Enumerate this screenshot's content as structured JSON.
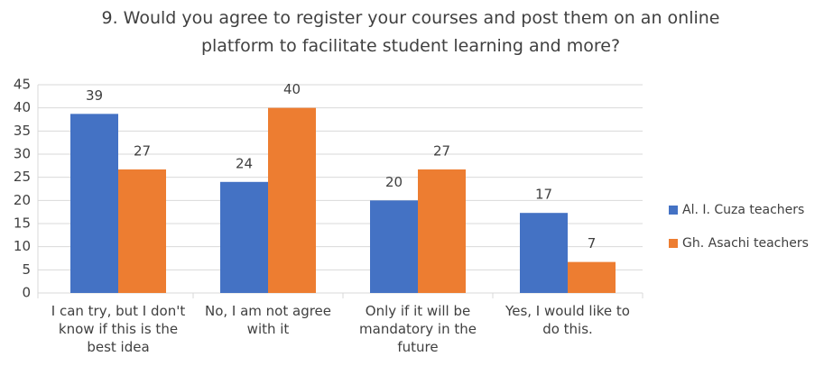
{
  "chart_data": {
    "type": "bar",
    "title": "9. Would you agree to register your courses and post them on an online platform to facilitate student learning and more?",
    "categories": [
      "I can try, but I don't know if this is the best idea",
      "No, I am not agree with it",
      "Only  if it will be mandatory in the future",
      "Yes, I would like to do this."
    ],
    "series": [
      {
        "name": "Al. I. Cuza teachers",
        "color": "#4472c4",
        "values": [
          38.7,
          24,
          20,
          17.3
        ],
        "value_labels": [
          "39",
          "24",
          "20",
          "17"
        ]
      },
      {
        "name": "Gh. Asachi teachers",
        "color": "#ed7d31",
        "values": [
          26.7,
          40,
          26.7,
          6.7
        ],
        "value_labels": [
          "27",
          "40",
          "27",
          "7"
        ]
      }
    ],
    "ylim": [
      0,
      45
    ],
    "yticks": [
      0,
      5,
      10,
      15,
      20,
      25,
      30,
      35,
      40,
      45
    ],
    "grid": true,
    "legend": "right"
  }
}
